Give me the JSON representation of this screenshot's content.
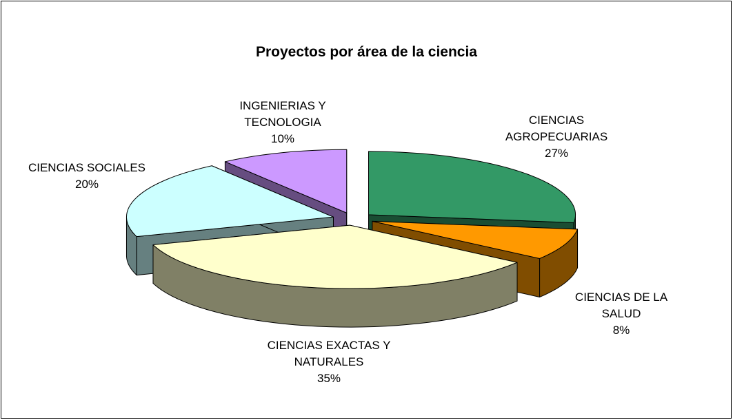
{
  "chart_data": {
    "type": "pie3d",
    "title": "Proyectos por área de la ciencia",
    "categories": [
      "CIENCIAS AGROPECUARIAS",
      "CIENCIAS DE LA SALUD",
      "CIENCIAS EXACTAS Y NATURALES",
      "CIENCIAS SOCIALES",
      "INGENIERIAS Y TECNOLOGIA"
    ],
    "values": [
      27,
      8,
      35,
      20,
      10
    ],
    "value_labels": [
      "27%",
      "8%",
      "35%",
      "20%",
      "10%"
    ],
    "colors": [
      "#339966",
      "#ff9900",
      "#ffffcc",
      "#ccffff",
      "#cc99ff"
    ]
  }
}
